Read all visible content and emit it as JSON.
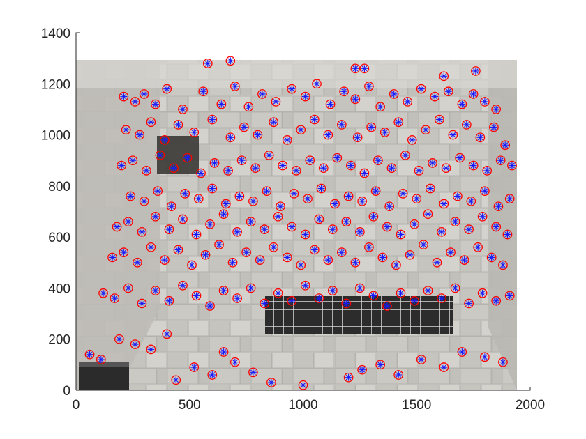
{
  "chart_data": {
    "type": "scatter",
    "background": "photo",
    "x_ticks": [
      0,
      500,
      1000,
      1500,
      2000
    ],
    "y_ticks": [
      0,
      200,
      400,
      600,
      800,
      1000,
      1200,
      1400
    ],
    "xlim": [
      0,
      2000
    ],
    "ylim": [
      0,
      1400
    ],
    "image_extent": {
      "x": [
        0,
        1950
      ],
      "y": [
        0,
        1300
      ]
    },
    "grid": false,
    "legend": "none",
    "colors": {
      "circle": "#ff0000",
      "star": "#1a1aff",
      "axis": "#262626",
      "photo_stone": "#c9c7c2",
      "photo_grate": "#2f2f2f"
    },
    "series": [
      {
        "marker": "circle+star",
        "x": [
          210,
          260,
          300,
          350,
          400,
          470,
          560,
          640,
          700,
          760,
          820,
          880,
          950,
          1010,
          1060,
          1120,
          1180,
          1230,
          1290,
          1340,
          1400,
          1460,
          1520,
          1580,
          1640,
          1700,
          1750,
          1800,
          1850,
          220,
          280,
          330,
          390,
          450,
          520,
          600,
          680,
          740,
          800,
          870,
          930,
          990,
          1050,
          1110,
          1170,
          1240,
          1300,
          1360,
          1420,
          1480,
          1540,
          1600,
          1660,
          1720,
          1780,
          1840,
          1890,
          200,
          250,
          310,
          370,
          430,
          490,
          550,
          610,
          670,
          730,
          790,
          850,
          910,
          970,
          1030,
          1090,
          1150,
          1210,
          1270,
          1330,
          1390,
          1450,
          1510,
          1570,
          1630,
          1690,
          1750,
          1810,
          1870,
          1920,
          240,
          300,
          360,
          420,
          480,
          540,
          600,
          660,
          720,
          780,
          840,
          900,
          960,
          1020,
          1080,
          1140,
          1200,
          1260,
          1320,
          1380,
          1440,
          1500,
          1560,
          1620,
          1680,
          1740,
          1800,
          1860,
          1910,
          180,
          230,
          290,
          350,
          410,
          470,
          530,
          590,
          650,
          710,
          770,
          830,
          890,
          950,
          1010,
          1070,
          1130,
          1190,
          1250,
          1310,
          1370,
          1430,
          1490,
          1550,
          1610,
          1670,
          1730,
          1790,
          1850,
          1900,
          160,
          210,
          270,
          330,
          390,
          450,
          510,
          570,
          630,
          690,
          750,
          810,
          870,
          930,
          990,
          1050,
          1110,
          1170,
          1230,
          1290,
          1350,
          1410,
          1470,
          1530,
          1590,
          1650,
          1710,
          1770,
          1830,
          1880,
          120,
          170,
          230,
          290,
          350,
          410,
          470,
          530,
          590,
          650,
          710,
          770,
          830,
          890,
          950,
          1010,
          1070,
          1130,
          1190,
          1250,
          1310,
          1370,
          1430,
          1490,
          1550,
          1610,
          1670,
          1730,
          1790,
          1850,
          1910,
          60,
          110,
          190,
          260,
          330,
          400,
          440,
          520,
          600,
          650,
          700,
          780,
          860,
          1000,
          1200,
          1260,
          1340,
          1420,
          1520,
          1620,
          1700,
          1800,
          1880,
          680,
          1230,
          1270,
          1620,
          1760,
          580
        ],
        "y": [
          1150,
          1130,
          1160,
          1120,
          1180,
          1100,
          1170,
          1120,
          1190,
          1110,
          1160,
          1130,
          1180,
          1150,
          1200,
          1120,
          1170,
          1140,
          1190,
          1110,
          1160,
          1130,
          1180,
          1150,
          1170,
          1120,
          1160,
          1130,
          1100,
          1020,
          1000,
          1050,
          980,
          1040,
          1010,
          1060,
          990,
          1030,
          1000,
          1050,
          980,
          1020,
          1060,
          1000,
          1040,
          990,
          1030,
          1010,
          1050,
          980,
          1020,
          1060,
          1000,
          1040,
          990,
          1030,
          960,
          880,
          900,
          860,
          920,
          870,
          910,
          850,
          890,
          860,
          900,
          870,
          920,
          880,
          860,
          900,
          870,
          910,
          880,
          850,
          900,
          870,
          920,
          860,
          890,
          870,
          910,
          880,
          860,
          900,
          880,
          760,
          740,
          780,
          720,
          770,
          750,
          790,
          730,
          760,
          740,
          780,
          720,
          770,
          750,
          790,
          730,
          760,
          740,
          780,
          720,
          770,
          750,
          790,
          730,
          760,
          740,
          780,
          720,
          750,
          640,
          660,
          620,
          680,
          630,
          670,
          610,
          650,
          690,
          620,
          660,
          630,
          680,
          640,
          610,
          670,
          630,
          660,
          620,
          680,
          640,
          610,
          650,
          690,
          620,
          660,
          630,
          680,
          640,
          610,
          520,
          540,
          500,
          560,
          510,
          550,
          490,
          530,
          570,
          500,
          540,
          510,
          560,
          520,
          490,
          550,
          510,
          540,
          500,
          560,
          520,
          490,
          530,
          570,
          500,
          540,
          510,
          560,
          520,
          490,
          380,
          360,
          400,
          340,
          390,
          350,
          410,
          370,
          330,
          390,
          360,
          400,
          340,
          380,
          350,
          410,
          360,
          390,
          340,
          400,
          370,
          330,
          380,
          350,
          390,
          360,
          400,
          340,
          380,
          350,
          370,
          140,
          120,
          200,
          180,
          160,
          220,
          40,
          90,
          60,
          150,
          110,
          70,
          30,
          20,
          50,
          80,
          100,
          60,
          120,
          90,
          150,
          130,
          110,
          1290,
          1260,
          1260,
          1230,
          1250,
          1280
        ]
      }
    ]
  }
}
